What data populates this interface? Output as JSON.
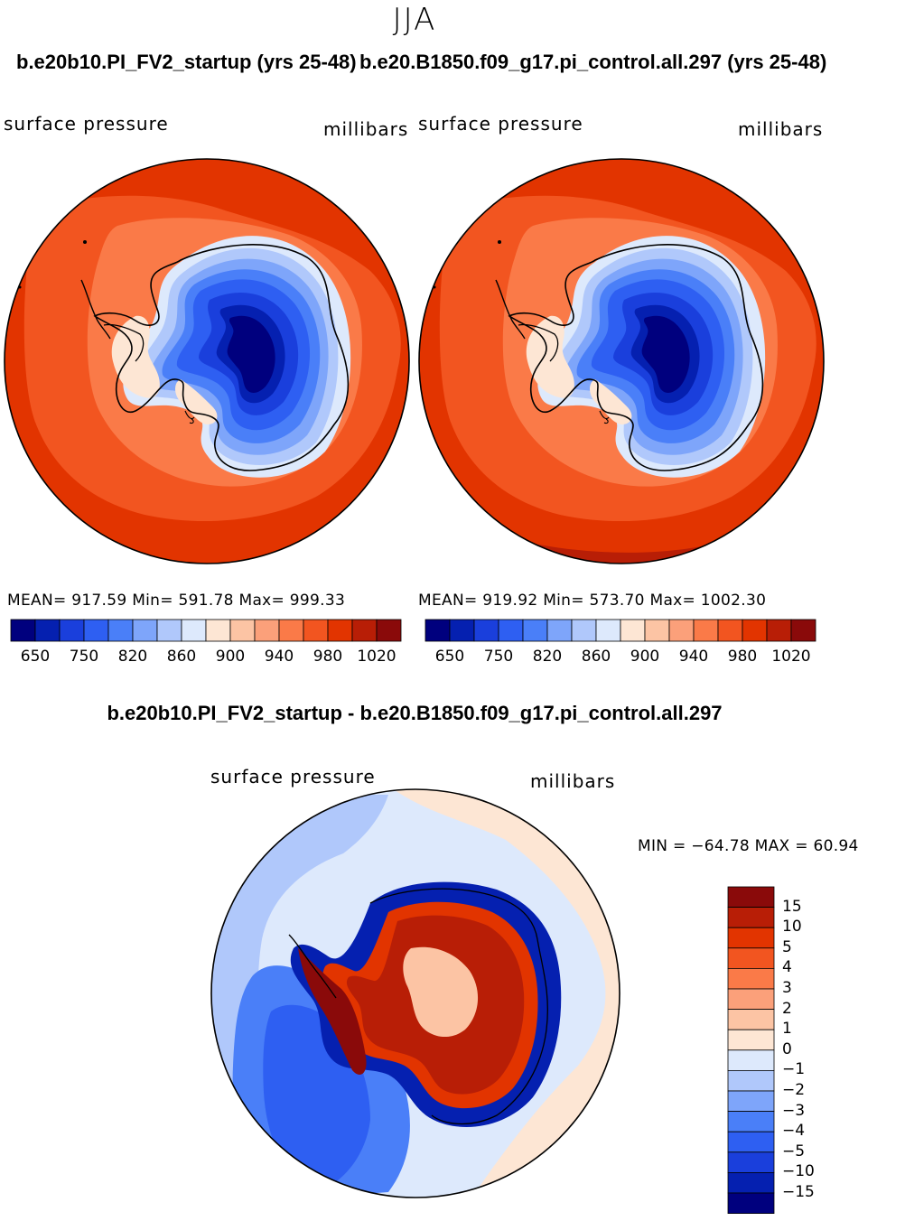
{
  "page": {
    "season": "JJA",
    "case1_title": "b.e20b10.PI_FV2_startup (yrs 25-48)",
    "case2_title": "b.e20.B1850.f09_g17.pi_control.all.297 (yrs 25-48)",
    "diff_title": "b.e20b10.PI_FV2_startup - b.e20.B1850.f09_g17.pi_control.all.297"
  },
  "panels": [
    {
      "variable": "surface pressure",
      "units": "millibars",
      "stats": {
        "mean": "917.59",
        "min": "591.78",
        "max": "999.33"
      },
      "stats_text": "MEAN= 917.59   Min= 591.78   Max= 999.33"
    },
    {
      "variable": "surface pressure",
      "units": "millibars",
      "stats": {
        "mean": "919.92",
        "min": "573.70",
        "max": "1002.30"
      },
      "stats_text": "MEAN= 919.92   Min= 573.70   Max= 1002.30"
    }
  ],
  "colorbar": {
    "ticks": [
      "650",
      "750",
      "820",
      "860",
      "900",
      "940",
      "980",
      "1020"
    ],
    "colors": [
      "#00007e",
      "#0520b0",
      "#1a3fdc",
      "#2e5ff2",
      "#4a7ff8",
      "#7ea5fa",
      "#b0c8fb",
      "#dde9fc",
      "#fde6d4",
      "#fcc4a4",
      "#fba07a",
      "#fa7a48",
      "#f25520",
      "#e23400",
      "#b81e06",
      "#8a0a0a"
    ]
  },
  "diff_panel": {
    "variable": "surface pressure",
    "units": "millibars",
    "stats_text": "MIN = −64.78 MAX =   60.94",
    "stats": {
      "min": "-64.78",
      "max": "60.94"
    },
    "colorbar_labels": [
      "15",
      "10",
      "5",
      "4",
      "3",
      "2",
      "1",
      "0",
      "−1",
      "−2",
      "−3",
      "−4",
      "−5",
      "−10",
      "−15"
    ],
    "colorbar_colors": [
      "#8a0a0a",
      "#b81e06",
      "#e23400",
      "#f25520",
      "#fa7a48",
      "#fba07a",
      "#fcc4a4",
      "#fde6d4",
      "#dde9fc",
      "#b0c8fb",
      "#7ea5fa",
      "#4a7ff8",
      "#2e5ff2",
      "#1a3fdc",
      "#0520b0",
      "#00007e"
    ]
  },
  "chart_data": [
    {
      "type": "heatmap",
      "title": "b.e20b10.PI_FV2_startup (yrs 25-48)",
      "variable": "surface pressure",
      "units": "millibars",
      "projection": "south polar stereographic",
      "levels": [
        650,
        700,
        750,
        780,
        820,
        840,
        860,
        880,
        900,
        920,
        940,
        960,
        980,
        1000,
        1020
      ],
      "mean": 917.59,
      "min": 591.78,
      "max": 999.33
    },
    {
      "type": "heatmap",
      "title": "b.e20.B1850.f09_g17.pi_control.all.297 (yrs 25-48)",
      "variable": "surface pressure",
      "units": "millibars",
      "projection": "south polar stereographic",
      "levels": [
        650,
        700,
        750,
        780,
        820,
        840,
        860,
        880,
        900,
        920,
        940,
        960,
        980,
        1000,
        1020
      ],
      "mean": 919.92,
      "min": 573.7,
      "max": 1002.3
    },
    {
      "type": "heatmap",
      "title": "b.e20b10.PI_FV2_startup - b.e20.B1850.f09_g17.pi_control.all.297",
      "variable": "surface pressure",
      "units": "millibars",
      "projection": "south polar stereographic",
      "levels": [
        -15,
        -10,
        -5,
        -4,
        -3,
        -2,
        -1,
        0,
        1,
        2,
        3,
        4,
        5,
        10,
        15
      ],
      "min": -64.78,
      "max": 60.94
    }
  ]
}
